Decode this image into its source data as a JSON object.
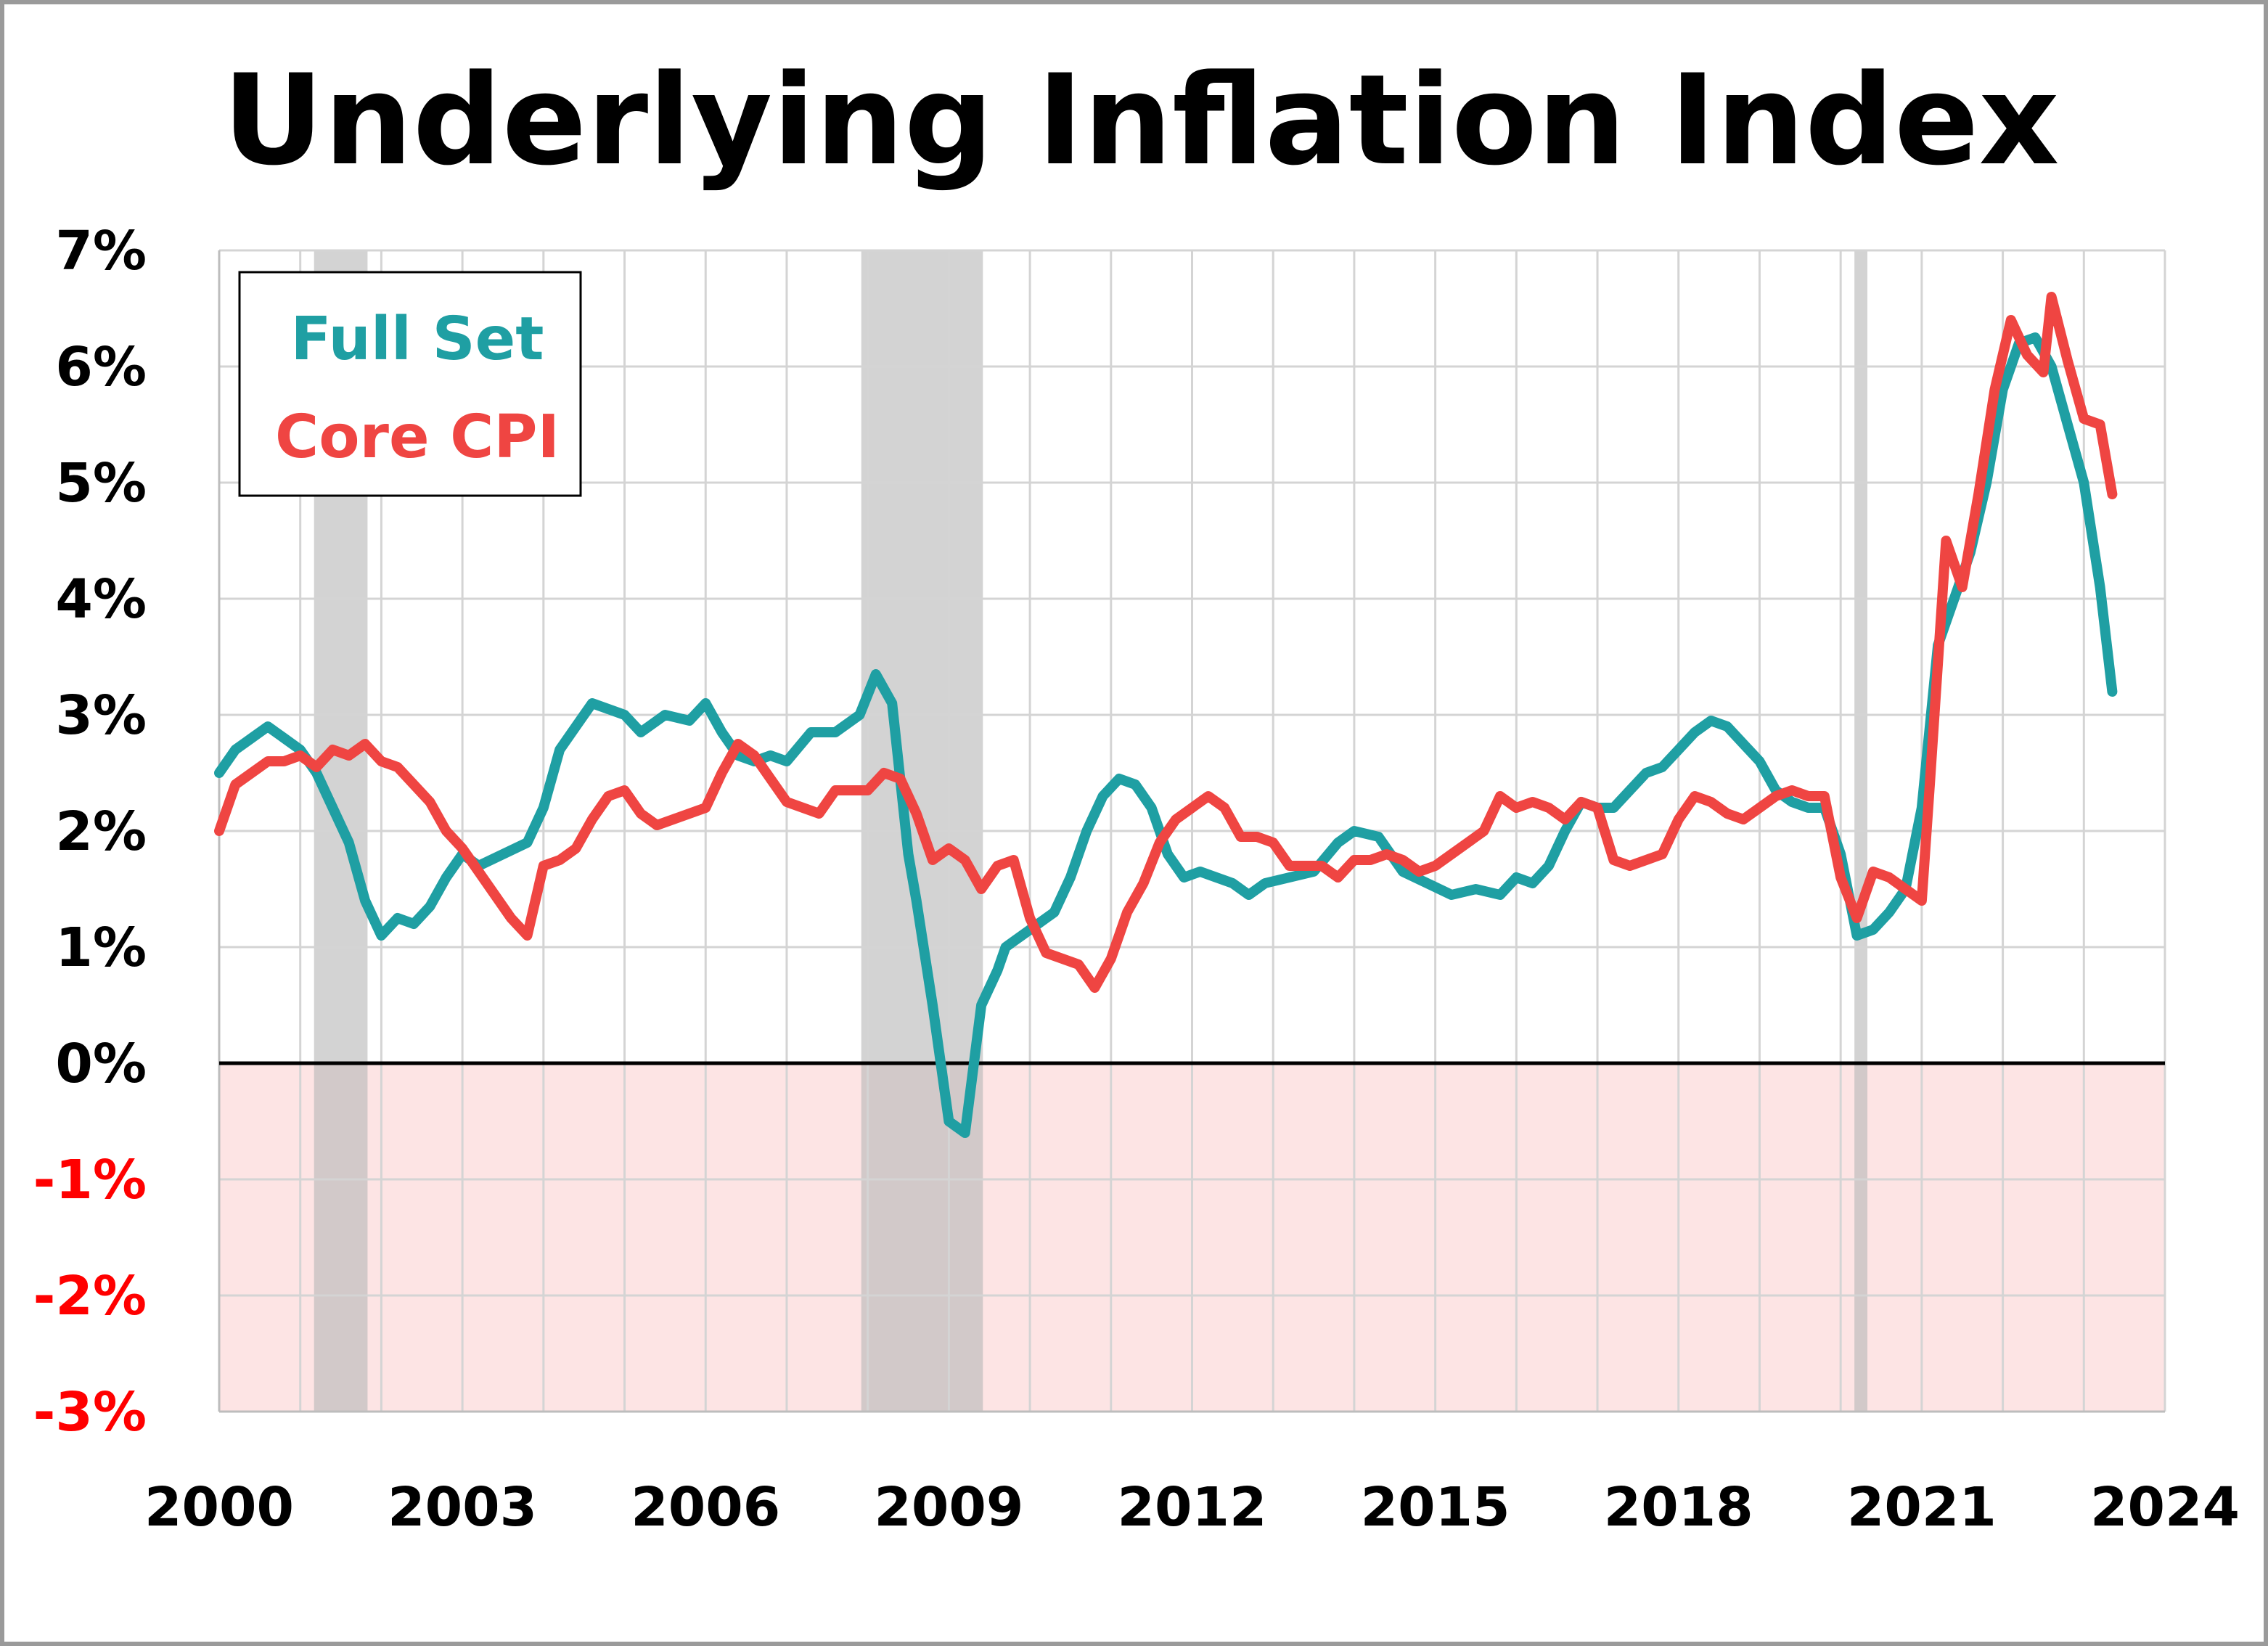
{
  "chart_data": {
    "type": "line",
    "title": "Underlying Inflation Index",
    "xlabel": "",
    "ylabel": "",
    "xlim": [
      2000,
      2024
    ],
    "ylim": [
      -3,
      7
    ],
    "x_ticks": [
      "2000",
      "2003",
      "2006",
      "2009",
      "2012",
      "2015",
      "2018",
      "2021",
      "2024"
    ],
    "y_ticks": [
      "7%",
      "6%",
      "5%",
      "4%",
      "3%",
      "2%",
      "1%",
      "0%",
      "-1%",
      "-2%",
      "-3%"
    ],
    "grid": true,
    "legend_position": "top-left",
    "negative_region_color": "#fde4e4",
    "recessions": [
      [
        2001.17,
        2001.83
      ],
      [
        2007.92,
        2009.42
      ],
      [
        2020.17,
        2020.33
      ]
    ],
    "series": [
      {
        "name": "Full Set",
        "color": "#1f9fa3",
        "x": [
          2000.0,
          2000.2,
          2000.4,
          2000.6,
          2000.8,
          2001.0,
          2001.2,
          2001.4,
          2001.6,
          2001.8,
          2002.0,
          2002.2,
          2002.4,
          2002.6,
          2002.8,
          2003.0,
          2003.2,
          2003.5,
          2003.8,
          2004.0,
          2004.2,
          2004.4,
          2004.6,
          2004.8,
          2005.0,
          2005.2,
          2005.5,
          2005.8,
          2006.0,
          2006.2,
          2006.4,
          2006.6,
          2006.8,
          2007.0,
          2007.3,
          2007.6,
          2007.9,
          2008.1,
          2008.3,
          2008.5,
          2008.6,
          2008.8,
          2009.0,
          2009.2,
          2009.4,
          2009.6,
          2009.7,
          2009.9,
          2010.1,
          2010.3,
          2010.5,
          2010.7,
          2010.9,
          2011.1,
          2011.3,
          2011.5,
          2011.7,
          2011.9,
          2012.1,
          2012.3,
          2012.5,
          2012.7,
          2012.9,
          2013.2,
          2013.5,
          2013.8,
          2014.0,
          2014.3,
          2014.6,
          2014.9,
          2015.2,
          2015.5,
          2015.8,
          2016.0,
          2016.2,
          2016.4,
          2016.6,
          2016.8,
          2017.0,
          2017.2,
          2017.4,
          2017.6,
          2017.8,
          2018.0,
          2018.2,
          2018.4,
          2018.6,
          2018.8,
          2019.0,
          2019.2,
          2019.4,
          2019.6,
          2019.8,
          2020.0,
          2020.2,
          2020.4,
          2020.6,
          2020.8,
          2021.0,
          2021.2,
          2021.4,
          2021.6,
          2021.8,
          2022.0,
          2022.2,
          2022.4,
          2022.6,
          2022.8,
          2023.0,
          2023.2,
          2023.35
        ],
        "values": [
          2.5,
          2.7,
          2.8,
          2.9,
          2.8,
          2.7,
          2.5,
          2.2,
          1.9,
          1.4,
          1.1,
          1.25,
          1.2,
          1.35,
          1.6,
          1.8,
          1.7,
          1.8,
          1.9,
          2.2,
          2.7,
          2.9,
          3.1,
          3.05,
          3.0,
          2.85,
          3.0,
          2.95,
          3.1,
          2.85,
          2.65,
          2.6,
          2.65,
          2.6,
          2.85,
          2.85,
          3.0,
          3.35,
          3.1,
          1.8,
          1.4,
          0.5,
          -0.5,
          -0.6,
          0.5,
          0.8,
          1.0,
          1.1,
          1.2,
          1.3,
          1.6,
          2.0,
          2.3,
          2.45,
          2.4,
          2.2,
          1.8,
          1.6,
          1.65,
          1.6,
          1.55,
          1.45,
          1.55,
          1.6,
          1.65,
          1.9,
          2.0,
          1.95,
          1.65,
          1.55,
          1.45,
          1.5,
          1.45,
          1.6,
          1.55,
          1.7,
          2.0,
          2.25,
          2.2,
          2.2,
          2.35,
          2.5,
          2.55,
          2.7,
          2.85,
          2.95,
          2.9,
          2.75,
          2.6,
          2.35,
          2.25,
          2.2,
          2.2,
          1.8,
          1.1,
          1.15,
          1.3,
          1.5,
          2.2,
          3.6,
          4.0,
          4.4,
          5.0,
          5.8,
          6.2,
          6.25,
          6.0,
          5.5,
          5.0,
          4.1,
          3.2
        ]
      },
      {
        "name": "Core CPI",
        "color": "#ef4542",
        "x": [
          2000.0,
          2000.2,
          2000.4,
          2000.6,
          2000.8,
          2001.0,
          2001.2,
          2001.4,
          2001.6,
          2001.8,
          2002.0,
          2002.2,
          2002.4,
          2002.6,
          2002.8,
          2003.0,
          2003.2,
          2003.4,
          2003.6,
          2003.8,
          2004.0,
          2004.2,
          2004.4,
          2004.6,
          2004.8,
          2005.0,
          2005.2,
          2005.4,
          2005.6,
          2005.8,
          2006.0,
          2006.2,
          2006.4,
          2006.6,
          2006.8,
          2007.0,
          2007.2,
          2007.4,
          2007.6,
          2007.8,
          2008.0,
          2008.2,
          2008.4,
          2008.6,
          2008.8,
          2009.0,
          2009.2,
          2009.4,
          2009.6,
          2009.8,
          2010.0,
          2010.2,
          2010.4,
          2010.6,
          2010.8,
          2011.0,
          2011.2,
          2011.4,
          2011.6,
          2011.8,
          2012.0,
          2012.2,
          2012.4,
          2012.6,
          2012.8,
          2013.0,
          2013.2,
          2013.4,
          2013.6,
          2013.8,
          2014.0,
          2014.2,
          2014.4,
          2014.6,
          2014.8,
          2015.0,
          2015.2,
          2015.4,
          2015.6,
          2015.8,
          2016.0,
          2016.2,
          2016.4,
          2016.6,
          2016.8,
          2017.0,
          2017.2,
          2017.4,
          2017.6,
          2017.8,
          2018.0,
          2018.2,
          2018.4,
          2018.6,
          2018.8,
          2019.0,
          2019.2,
          2019.4,
          2019.6,
          2019.8,
          2020.0,
          2020.2,
          2020.4,
          2020.6,
          2020.8,
          2021.0,
          2021.1,
          2021.3,
          2021.5,
          2021.7,
          2021.9,
          2022.1,
          2022.3,
          2022.5,
          2022.6,
          2022.8,
          2023.0,
          2023.2,
          2023.35
        ],
        "values": [
          2.0,
          2.4,
          2.5,
          2.6,
          2.6,
          2.65,
          2.55,
          2.7,
          2.65,
          2.75,
          2.6,
          2.55,
          2.4,
          2.25,
          2.0,
          1.85,
          1.65,
          1.45,
          1.25,
          1.1,
          1.7,
          1.75,
          1.85,
          2.1,
          2.3,
          2.35,
          2.15,
          2.05,
          2.1,
          2.15,
          2.2,
          2.5,
          2.75,
          2.65,
          2.45,
          2.25,
          2.2,
          2.15,
          2.35,
          2.35,
          2.35,
          2.5,
          2.45,
          2.15,
          1.75,
          1.85,
          1.75,
          1.5,
          1.7,
          1.75,
          1.25,
          0.95,
          0.9,
          0.85,
          0.65,
          0.9,
          1.3,
          1.55,
          1.9,
          2.1,
          2.2,
          2.3,
          2.2,
          1.95,
          1.95,
          1.9,
          1.7,
          1.7,
          1.7,
          1.6,
          1.75,
          1.75,
          1.8,
          1.75,
          1.65,
          1.7,
          1.8,
          1.9,
          2.0,
          2.3,
          2.2,
          2.25,
          2.2,
          2.1,
          2.25,
          2.2,
          1.75,
          1.7,
          1.75,
          1.8,
          2.1,
          2.3,
          2.25,
          2.15,
          2.1,
          2.2,
          2.3,
          2.35,
          2.3,
          2.3,
          1.6,
          1.25,
          1.65,
          1.6,
          1.5,
          1.4,
          2.4,
          4.5,
          4.1,
          4.9,
          5.8,
          6.4,
          6.1,
          5.95,
          6.6,
          6.05,
          5.55,
          5.5,
          4.9
        ]
      }
    ]
  }
}
